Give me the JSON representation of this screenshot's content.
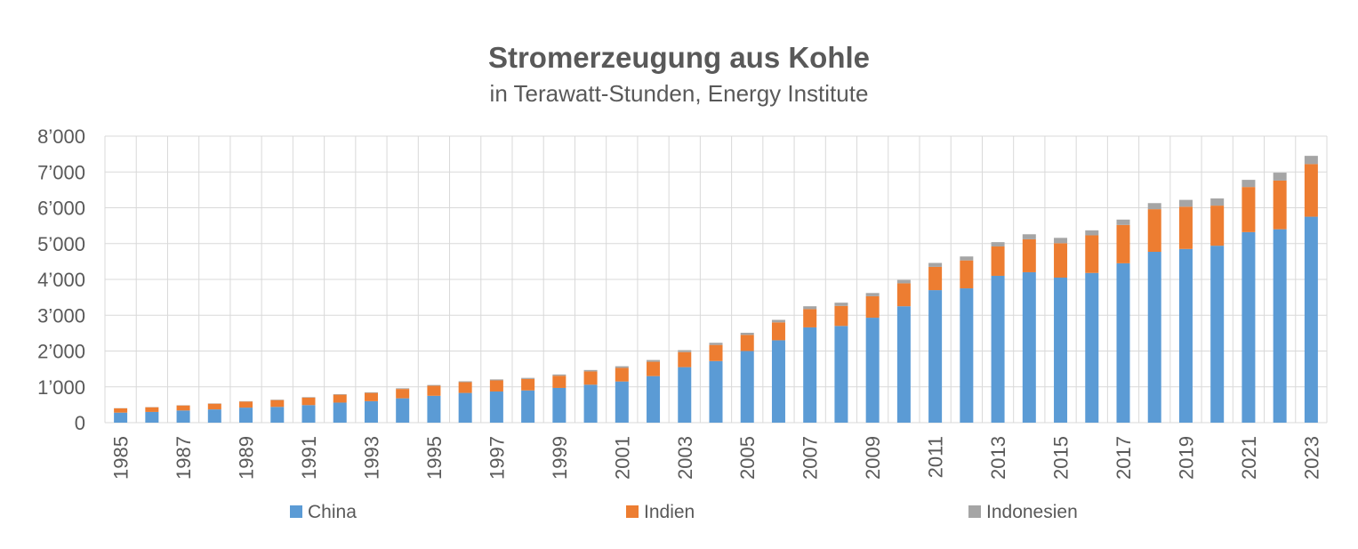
{
  "chart_data": {
    "type": "bar",
    "stacked": true,
    "title": "Stromerzeugung aus Kohle",
    "subtitle": "in Terawatt-Stunden, Energy Institute",
    "ylim": [
      0,
      8000
    ],
    "yticks": [
      "0",
      "1’000",
      "2’000",
      "3’000",
      "4’000",
      "5’000",
      "6’000",
      "7’000",
      "8’000"
    ],
    "grid": true,
    "legend_position": "bottom",
    "categories": [
      "1985",
      "1986",
      "1987",
      "1988",
      "1989",
      "1990",
      "1991",
      "1992",
      "1993",
      "1994",
      "1995",
      "1996",
      "1997",
      "1998",
      "1999",
      "2000",
      "2001",
      "2002",
      "2003",
      "2004",
      "2005",
      "2006",
      "2007",
      "2008",
      "2009",
      "2010",
      "2011",
      "2012",
      "2013",
      "2014",
      "2015",
      "2016",
      "2017",
      "2018",
      "2019",
      "2020",
      "2021",
      "2022",
      "2023"
    ],
    "xtick_labels": [
      "1985",
      "",
      "1987",
      "",
      "1989",
      "",
      "1991",
      "",
      "1993",
      "",
      "1995",
      "",
      "1997",
      "",
      "1999",
      "",
      "2001",
      "",
      "2003",
      "",
      "2005",
      "",
      "2007",
      "",
      "2009",
      "",
      "2011",
      "",
      "2013",
      "",
      "2015",
      "",
      "2017",
      "",
      "2019",
      "",
      "2021",
      "",
      "2023"
    ],
    "series": [
      {
        "name": "China",
        "color": "#5B9BD5",
        "values": [
          280,
          300,
          340,
          370,
          420,
          440,
          490,
          560,
          600,
          680,
          750,
          830,
          870,
          900,
          970,
          1060,
          1150,
          1300,
          1550,
          1720,
          2000,
          2300,
          2660,
          2700,
          2930,
          3250,
          3700,
          3750,
          4100,
          4200,
          4050,
          4180,
          4450,
          4770,
          4850,
          4940,
          5320,
          5400,
          5750
        ]
      },
      {
        "name": "Indien",
        "color": "#ED7D31",
        "values": [
          120,
          130,
          140,
          160,
          170,
          190,
          210,
          220,
          230,
          260,
          280,
          300,
          310,
          320,
          340,
          370,
          380,
          400,
          420,
          450,
          450,
          500,
          510,
          560,
          600,
          640,
          650,
          780,
          820,
          920,
          960,
          1050,
          1070,
          1190,
          1180,
          1120,
          1260,
          1360,
          1470
        ]
      },
      {
        "name": "Indonesien",
        "color": "#A5A5A5",
        "values": [
          5,
          6,
          7,
          8,
          10,
          12,
          14,
          16,
          18,
          20,
          22,
          25,
          28,
          30,
          35,
          40,
          45,
          50,
          55,
          60,
          60,
          70,
          80,
          90,
          90,
          95,
          110,
          110,
          120,
          140,
          150,
          140,
          150,
          170,
          190,
          200,
          200,
          220,
          230
        ]
      }
    ]
  }
}
